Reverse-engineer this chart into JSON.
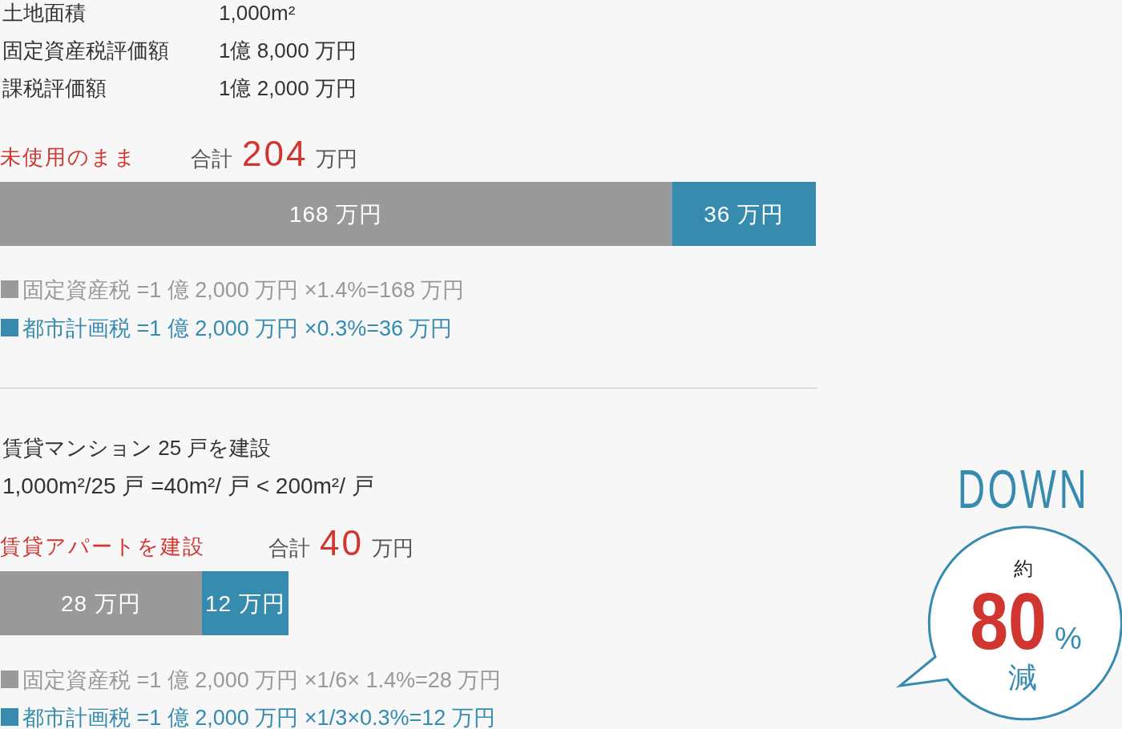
{
  "chart_data": [
    {
      "type": "bar",
      "orientation": "horizontal",
      "stacked": true,
      "legend": "bottom",
      "categories": [
        "未使用のまま"
      ],
      "totals": [
        "合計 204 万円"
      ],
      "series": [
        {
          "name": "固定資産税 =1 億 2,000 万円 ×1.4%=168 万円",
          "color": "#999999",
          "values": [
            168
          ],
          "value_labels": [
            "168 万円"
          ]
        },
        {
          "name": "都市計画税 =1 億 2,000 万円 ×0.3%=36 万円",
          "color": "#368bae",
          "values": [
            36
          ],
          "value_labels": [
            "36 万円"
          ]
        }
      ],
      "annotations": [
        "土地面積",
        "1,000m²",
        "固定資産税評価額",
        "1億 8,000 万円",
        "課税評価額",
        "1億 2,000 万円"
      ]
    },
    {
      "type": "bar",
      "orientation": "horizontal",
      "stacked": true,
      "legend": "bottom",
      "categories": [
        "賃貸アパートを建設"
      ],
      "totals": [
        "合計 40 万円"
      ],
      "series": [
        {
          "name": "固定資産税 =1 億 2,000 万円 ×1/6× 1.4%=28 万円",
          "color": "#999999",
          "values": [
            28
          ],
          "value_labels": [
            "28 万円"
          ]
        },
        {
          "name": "都市計画税 =1 億 2,000 万円 ×1/3×0.3%=12 万円",
          "color": "#368bae",
          "values": [
            12
          ],
          "value_labels": [
            "12 万円"
          ]
        }
      ],
      "annotations": [
        "賃貸マンション 25 戸を建設",
        "1,000m²/25 戸 =40m²/ 戸 < 200m²/ 戸",
        "DOWN",
        "約",
        "80",
        "%",
        "減"
      ]
    }
  ]
}
